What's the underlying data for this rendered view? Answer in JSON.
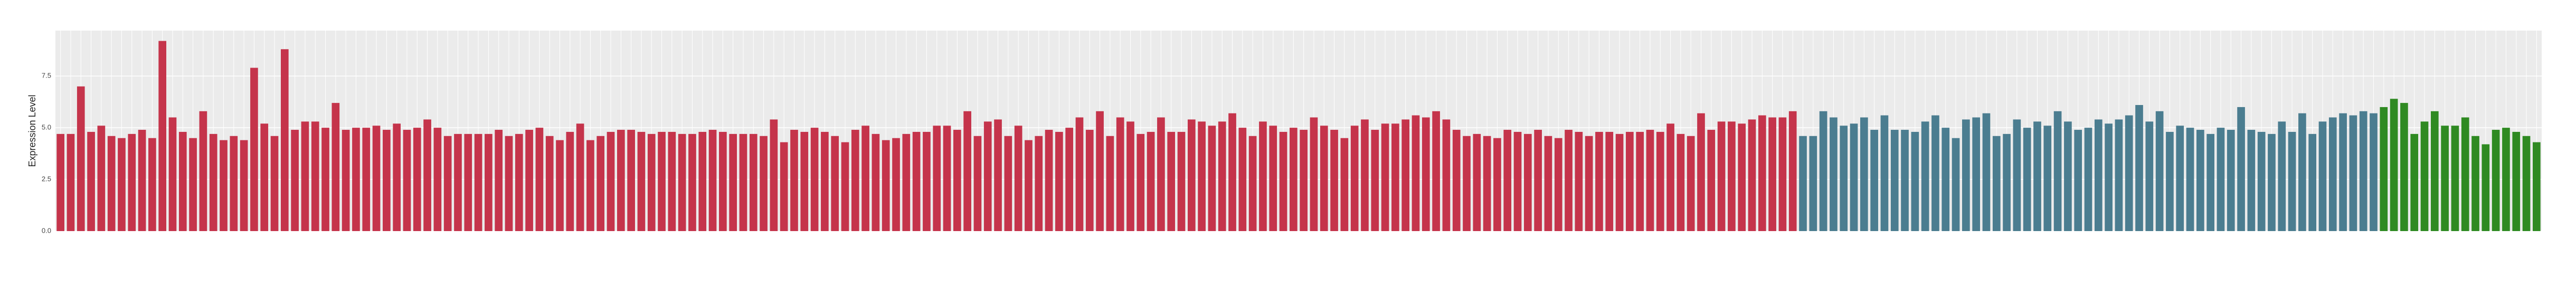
{
  "chart_data": {
    "type": "bar",
    "ylabel": "Expression Level",
    "ylim": [
      0,
      9.7
    ],
    "yticks": [
      {
        "value": 0,
        "label": "0.0"
      },
      {
        "value": 2.5,
        "label": "2.5"
      },
      {
        "value": 5,
        "label": "5.0"
      },
      {
        "value": 7.5,
        "label": "7.5"
      }
    ],
    "grid": true,
    "series": [
      {
        "color": "#c5344b",
        "values": [
          4.7,
          4.7,
          7.0,
          4.8,
          5.1,
          4.6,
          4.5,
          4.7,
          4.9,
          4.5,
          9.2,
          5.5,
          4.8,
          4.5,
          5.8,
          4.7,
          4.4,
          4.6,
          4.4,
          7.9,
          5.2,
          4.6,
          8.8,
          4.9,
          5.3,
          5.3,
          5.0,
          6.2,
          4.9,
          5.0,
          5.0,
          5.1,
          4.9,
          5.2,
          4.9,
          5.0,
          5.4,
          5.0,
          4.6,
          4.7,
          4.7,
          4.7,
          4.7,
          4.9,
          4.6,
          4.7,
          4.9,
          5.0,
          4.6,
          4.4,
          4.8,
          5.2,
          4.4,
          4.6,
          4.8,
          4.9,
          4.9,
          4.8,
          4.7,
          4.8,
          4.8,
          4.7,
          4.7,
          4.8,
          4.9,
          4.8,
          4.7,
          4.7,
          4.7,
          4.6,
          5.4,
          4.3,
          4.9,
          4.8,
          5.0,
          4.8,
          4.6,
          4.3,
          4.9,
          5.1,
          4.7,
          4.4,
          4.5,
          4.7,
          4.8,
          4.8,
          5.1,
          5.1,
          4.9,
          5.8,
          4.6,
          5.3,
          5.4,
          4.6,
          5.1,
          4.4,
          4.6,
          4.9,
          4.8,
          5.0,
          5.5,
          4.9,
          5.8,
          4.6,
          5.5,
          5.3,
          4.7,
          4.8,
          5.5,
          4.8,
          4.8,
          5.4,
          5.3,
          5.1,
          5.3,
          5.7,
          5.0,
          4.6,
          5.3,
          5.1,
          4.8,
          5.0,
          4.9,
          5.5,
          5.1,
          4.9,
          4.5,
          5.1,
          5.4,
          4.9,
          5.2,
          5.2,
          5.4,
          5.6,
          5.5,
          5.8,
          5.4,
          4.9,
          4.6,
          4.7,
          4.6,
          4.5,
          4.9,
          4.8,
          4.7,
          4.9,
          4.6,
          4.5,
          4.9,
          4.8,
          4.6,
          4.8,
          4.8,
          4.7,
          4.8,
          4.8,
          4.9,
          4.8,
          5.2,
          4.7,
          4.6,
          5.7,
          4.9,
          5.3,
          5.3,
          5.2,
          5.4,
          5.6,
          5.5,
          5.5,
          5.8
        ]
      },
      {
        "color": "#4b7d90",
        "values": [
          4.6,
          4.6,
          5.8,
          5.5,
          5.1,
          5.2,
          5.5,
          4.9,
          5.6,
          4.9,
          4.9,
          4.8,
          5.3,
          5.6,
          5.0,
          4.5,
          5.4,
          5.5,
          5.7,
          4.6,
          4.7,
          5.4,
          5.0,
          5.3,
          5.1,
          5.8,
          5.3,
          4.9,
          5.0,
          5.4,
          5.2,
          5.4,
          5.6,
          6.1,
          5.3,
          5.8,
          4.8,
          5.1,
          5.0,
          4.9,
          4.7,
          5.0,
          4.9,
          6.0,
          4.9,
          4.8,
          4.7,
          5.3,
          4.8,
          5.7,
          4.7,
          5.3,
          5.5,
          5.7,
          5.6,
          5.8,
          5.7
        ]
      },
      {
        "color": "#2f8a22",
        "values": [
          6.0,
          6.4,
          6.2,
          4.7,
          5.3,
          5.8,
          5.1,
          5.1,
          5.5,
          4.6,
          4.2,
          4.9,
          5.0,
          4.8,
          4.6,
          4.3
        ]
      }
    ]
  }
}
